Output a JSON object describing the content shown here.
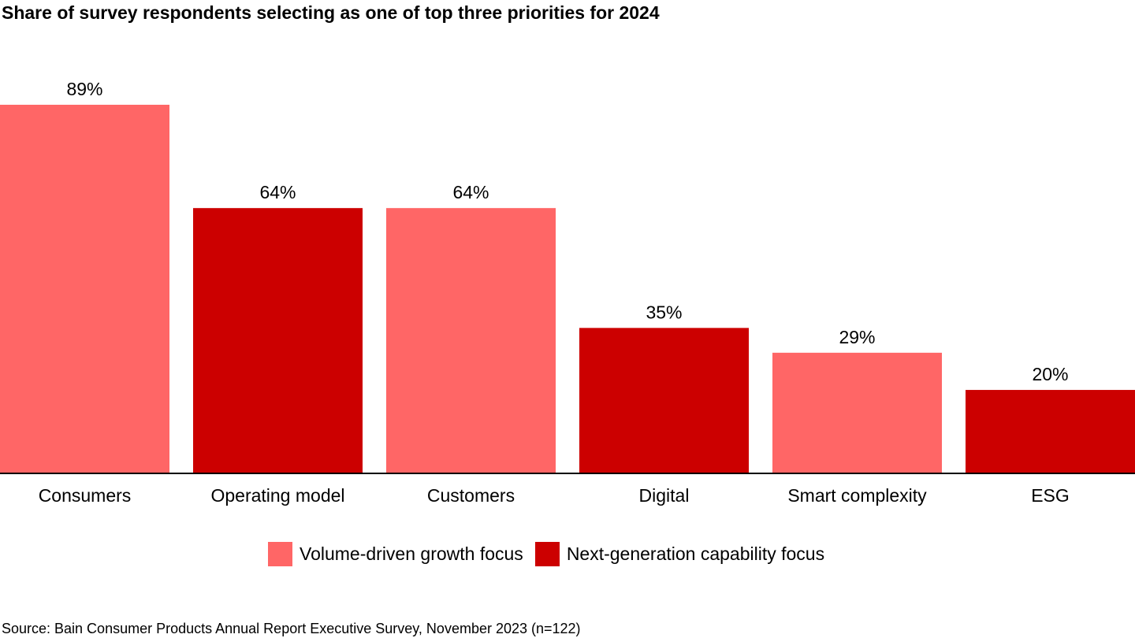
{
  "chart_data": {
    "type": "bar",
    "title": "Share of survey respondents selecting as one of top three priorities for 2024",
    "xlabel": "",
    "ylabel": "",
    "ylim": [
      0,
      100
    ],
    "grid": false,
    "legend_position": "bottom-center",
    "categories": [
      "Consumers",
      "Operating model",
      "Customers",
      "Digital",
      "Smart complexity",
      "ESG"
    ],
    "values": [
      89,
      64,
      64,
      35,
      29,
      20
    ],
    "value_labels": [
      "89%",
      "64%",
      "64%",
      "35%",
      "29%",
      "20%"
    ],
    "bar_groups": [
      "Volume-driven growth focus",
      "Next-generation capability focus",
      "Volume-driven growth focus",
      "Next-generation capability focus",
      "Volume-driven growth focus",
      "Next-generation capability focus"
    ],
    "legend": [
      {
        "label": "Volume-driven growth focus",
        "color": "#ff6666"
      },
      {
        "label": "Next-generation capability focus",
        "color": "#cc0000"
      }
    ],
    "source": "Source: Bain Consumer Products Annual Report Executive Survey, November 2023 (n=122)"
  }
}
